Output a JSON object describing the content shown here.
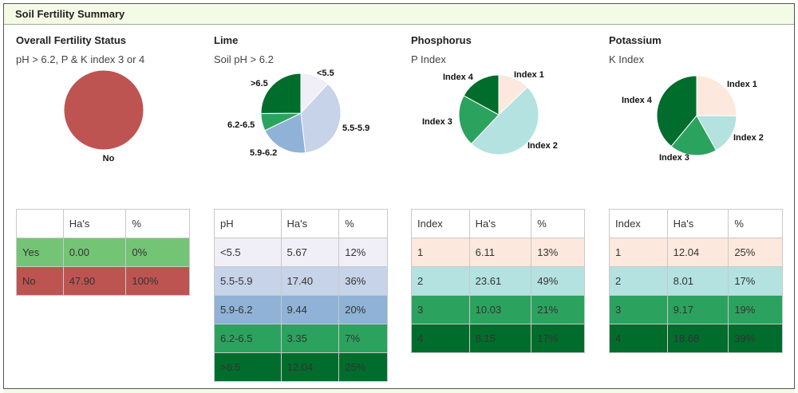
{
  "header": {
    "title": "Soil Fertility Summary"
  },
  "sections": [
    {
      "title": "Overall Fertility Status",
      "subtitle": "pH > 6.2, P & K index 3 or 4",
      "table": {
        "headers": [
          "",
          "Ha's",
          "%"
        ],
        "rows": [
          [
            "Yes",
            "0.00",
            "0%"
          ],
          [
            "No",
            "47.90",
            "100%"
          ]
        ],
        "row_colors": [
          "#74c476",
          "#bd5452"
        ]
      }
    },
    {
      "title": "Lime",
      "subtitle": "Soil pH > 6.2",
      "table": {
        "headers": [
          "pH",
          "Ha's",
          "%"
        ],
        "rows": [
          [
            "<5.5",
            "5.67",
            "12%"
          ],
          [
            "5.5-5.9",
            "17.40",
            "36%"
          ],
          [
            "5.9-6.2",
            "9.44",
            "20%"
          ],
          [
            "6.2-6.5",
            "3.35",
            "7%"
          ],
          [
            ">6.5",
            "12.04",
            "25%"
          ]
        ],
        "row_colors": [
          "#f0eef7",
          "#c6d3e8",
          "#8fb2d6",
          "#2ca25f",
          "#006d2c"
        ]
      }
    },
    {
      "title": "Phosphorus",
      "subtitle": "P Index",
      "table": {
        "headers": [
          "Index",
          "Ha's",
          "%"
        ],
        "rows": [
          [
            "1",
            "6.11",
            "13%"
          ],
          [
            "2",
            "23.61",
            "49%"
          ],
          [
            "3",
            "10.03",
            "21%"
          ],
          [
            "4",
            "8.15",
            "17%"
          ]
        ],
        "row_colors": [
          "#fde8dd",
          "#b3e2e0",
          "#2ca25f",
          "#006d2c"
        ]
      }
    },
    {
      "title": "Potassium",
      "subtitle": "K Index",
      "table": {
        "headers": [
          "Index",
          "Ha's",
          "%"
        ],
        "rows": [
          [
            "1",
            "12.04",
            "25%"
          ],
          [
            "2",
            "8.01",
            "17%"
          ],
          [
            "3",
            "9.17",
            "19%"
          ],
          [
            "4",
            "18.68",
            "39%"
          ]
        ],
        "row_colors": [
          "#fde8dd",
          "#b3e2e0",
          "#2ca25f",
          "#006d2c"
        ]
      }
    }
  ],
  "chart_data": [
    {
      "type": "pie",
      "categories": [
        "Yes",
        "No"
      ],
      "values": [
        0,
        47.9
      ],
      "colors": [
        "#74c476",
        "#bd5452"
      ],
      "labels_shown": [
        "No"
      ]
    },
    {
      "type": "pie",
      "categories": [
        "<5.5",
        "5.5-5.9",
        "5.9-6.2",
        "6.2-6.5",
        ">6.5"
      ],
      "values": [
        5.67,
        17.4,
        9.44,
        3.35,
        12.04
      ],
      "colors": [
        "#f0eef7",
        "#c6d3e8",
        "#8fb2d6",
        "#2ca25f",
        "#006d2c"
      ]
    },
    {
      "type": "pie",
      "categories": [
        "Index 1",
        "Index 2",
        "Index 3",
        "Index 4"
      ],
      "values": [
        6.11,
        23.61,
        10.03,
        8.15
      ],
      "colors": [
        "#fde8dd",
        "#b3e2e0",
        "#2ca25f",
        "#006d2c"
      ]
    },
    {
      "type": "pie",
      "categories": [
        "Index 1",
        "Index 2",
        "Index 3",
        "Index 4"
      ],
      "values": [
        12.04,
        8.01,
        9.17,
        18.68
      ],
      "colors": [
        "#fde8dd",
        "#b3e2e0",
        "#2ca25f",
        "#006d2c"
      ]
    }
  ]
}
